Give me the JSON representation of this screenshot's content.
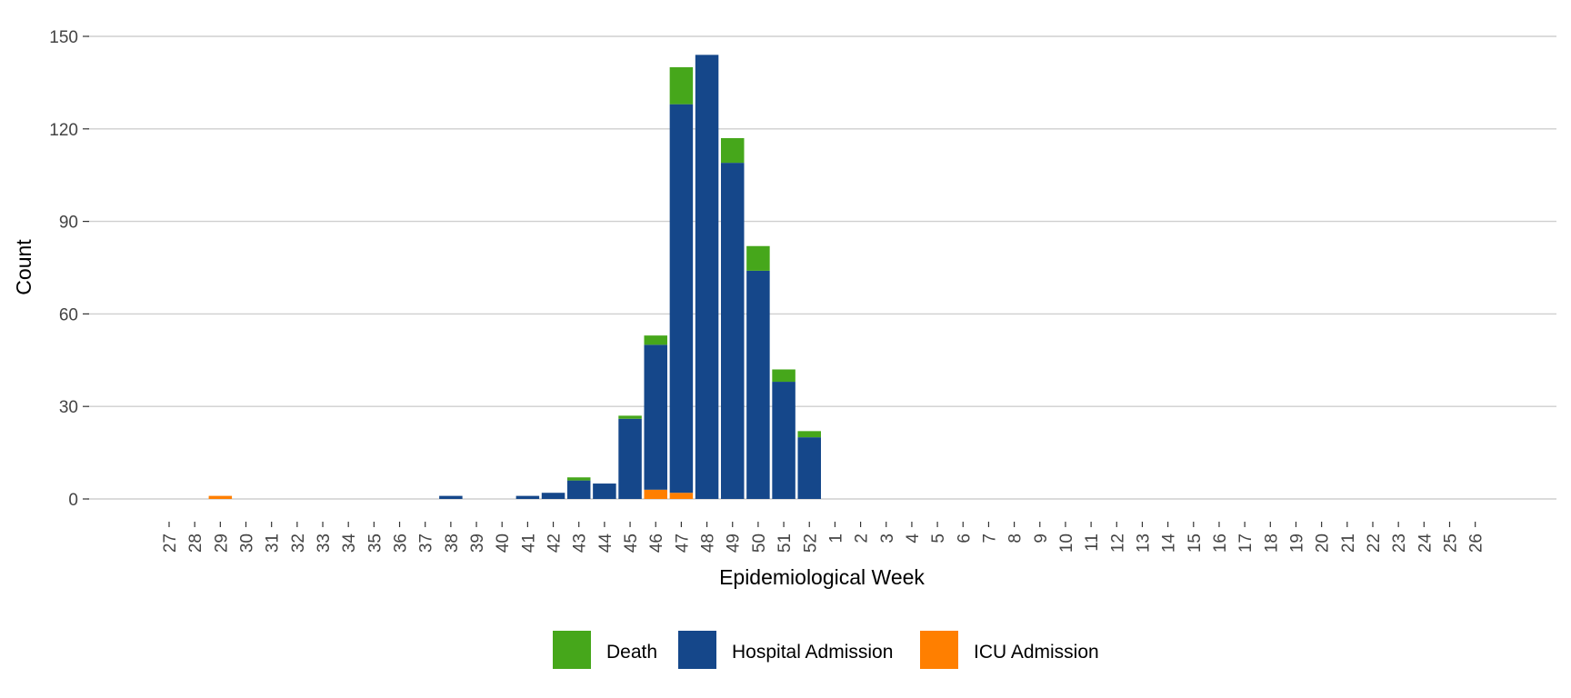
{
  "chart_data": {
    "type": "bar",
    "stacked": true,
    "xlabel": "Epidemiological Week",
    "ylabel": "Count",
    "ylim": [
      0,
      150
    ],
    "yticks": [
      0,
      30,
      60,
      90,
      120,
      150
    ],
    "grid": "horizontal",
    "legend_position": "bottom",
    "categories": [
      "27",
      "28",
      "29",
      "30",
      "31",
      "32",
      "33",
      "34",
      "35",
      "36",
      "37",
      "38",
      "39",
      "40",
      "41",
      "42",
      "43",
      "44",
      "45",
      "46",
      "47",
      "48",
      "49",
      "50",
      "51",
      "52",
      "1",
      "2",
      "3",
      "4",
      "5",
      "6",
      "7",
      "8",
      "9",
      "10",
      "11",
      "12",
      "13",
      "14",
      "15",
      "16",
      "17",
      "18",
      "19",
      "20",
      "21",
      "22",
      "23",
      "24",
      "25",
      "26"
    ],
    "series": [
      {
        "name": "ICU Admission",
        "color": "#FF7F00",
        "values": [
          0,
          0,
          1,
          0,
          0,
          0,
          0,
          0,
          0,
          0,
          0,
          0,
          0,
          0,
          0,
          0,
          0,
          0,
          0,
          3,
          2,
          0,
          0,
          0,
          0,
          0,
          0,
          0,
          0,
          0,
          0,
          0,
          0,
          0,
          0,
          0,
          0,
          0,
          0,
          0,
          0,
          0,
          0,
          0,
          0,
          0,
          0,
          0,
          0,
          0,
          0,
          0
        ]
      },
      {
        "name": "Hospital Admission",
        "color": "#15478A",
        "values": [
          0,
          0,
          0,
          0,
          0,
          0,
          0,
          0,
          0,
          0,
          0,
          1,
          0,
          0,
          1,
          2,
          6,
          5,
          26,
          47,
          126,
          144,
          109,
          74,
          38,
          20,
          0,
          0,
          0,
          0,
          0,
          0,
          0,
          0,
          0,
          0,
          0,
          0,
          0,
          0,
          0,
          0,
          0,
          0,
          0,
          0,
          0,
          0,
          0,
          0,
          0,
          0
        ]
      },
      {
        "name": "Death",
        "color": "#46A71B",
        "values": [
          0,
          0,
          0,
          0,
          0,
          0,
          0,
          0,
          0,
          0,
          0,
          0,
          0,
          0,
          0,
          0,
          1,
          0,
          1,
          3,
          12,
          0,
          8,
          8,
          4,
          2,
          0,
          0,
          0,
          0,
          0,
          0,
          0,
          0,
          0,
          0,
          0,
          0,
          0,
          0,
          0,
          0,
          0,
          0,
          0,
          0,
          0,
          0,
          0,
          0,
          0,
          0
        ]
      }
    ],
    "legend": [
      {
        "name": "Death",
        "color": "#46A71B"
      },
      {
        "name": "Hospital Admission",
        "color": "#15478A"
      },
      {
        "name": "ICU Admission",
        "color": "#FF7F00"
      }
    ]
  }
}
